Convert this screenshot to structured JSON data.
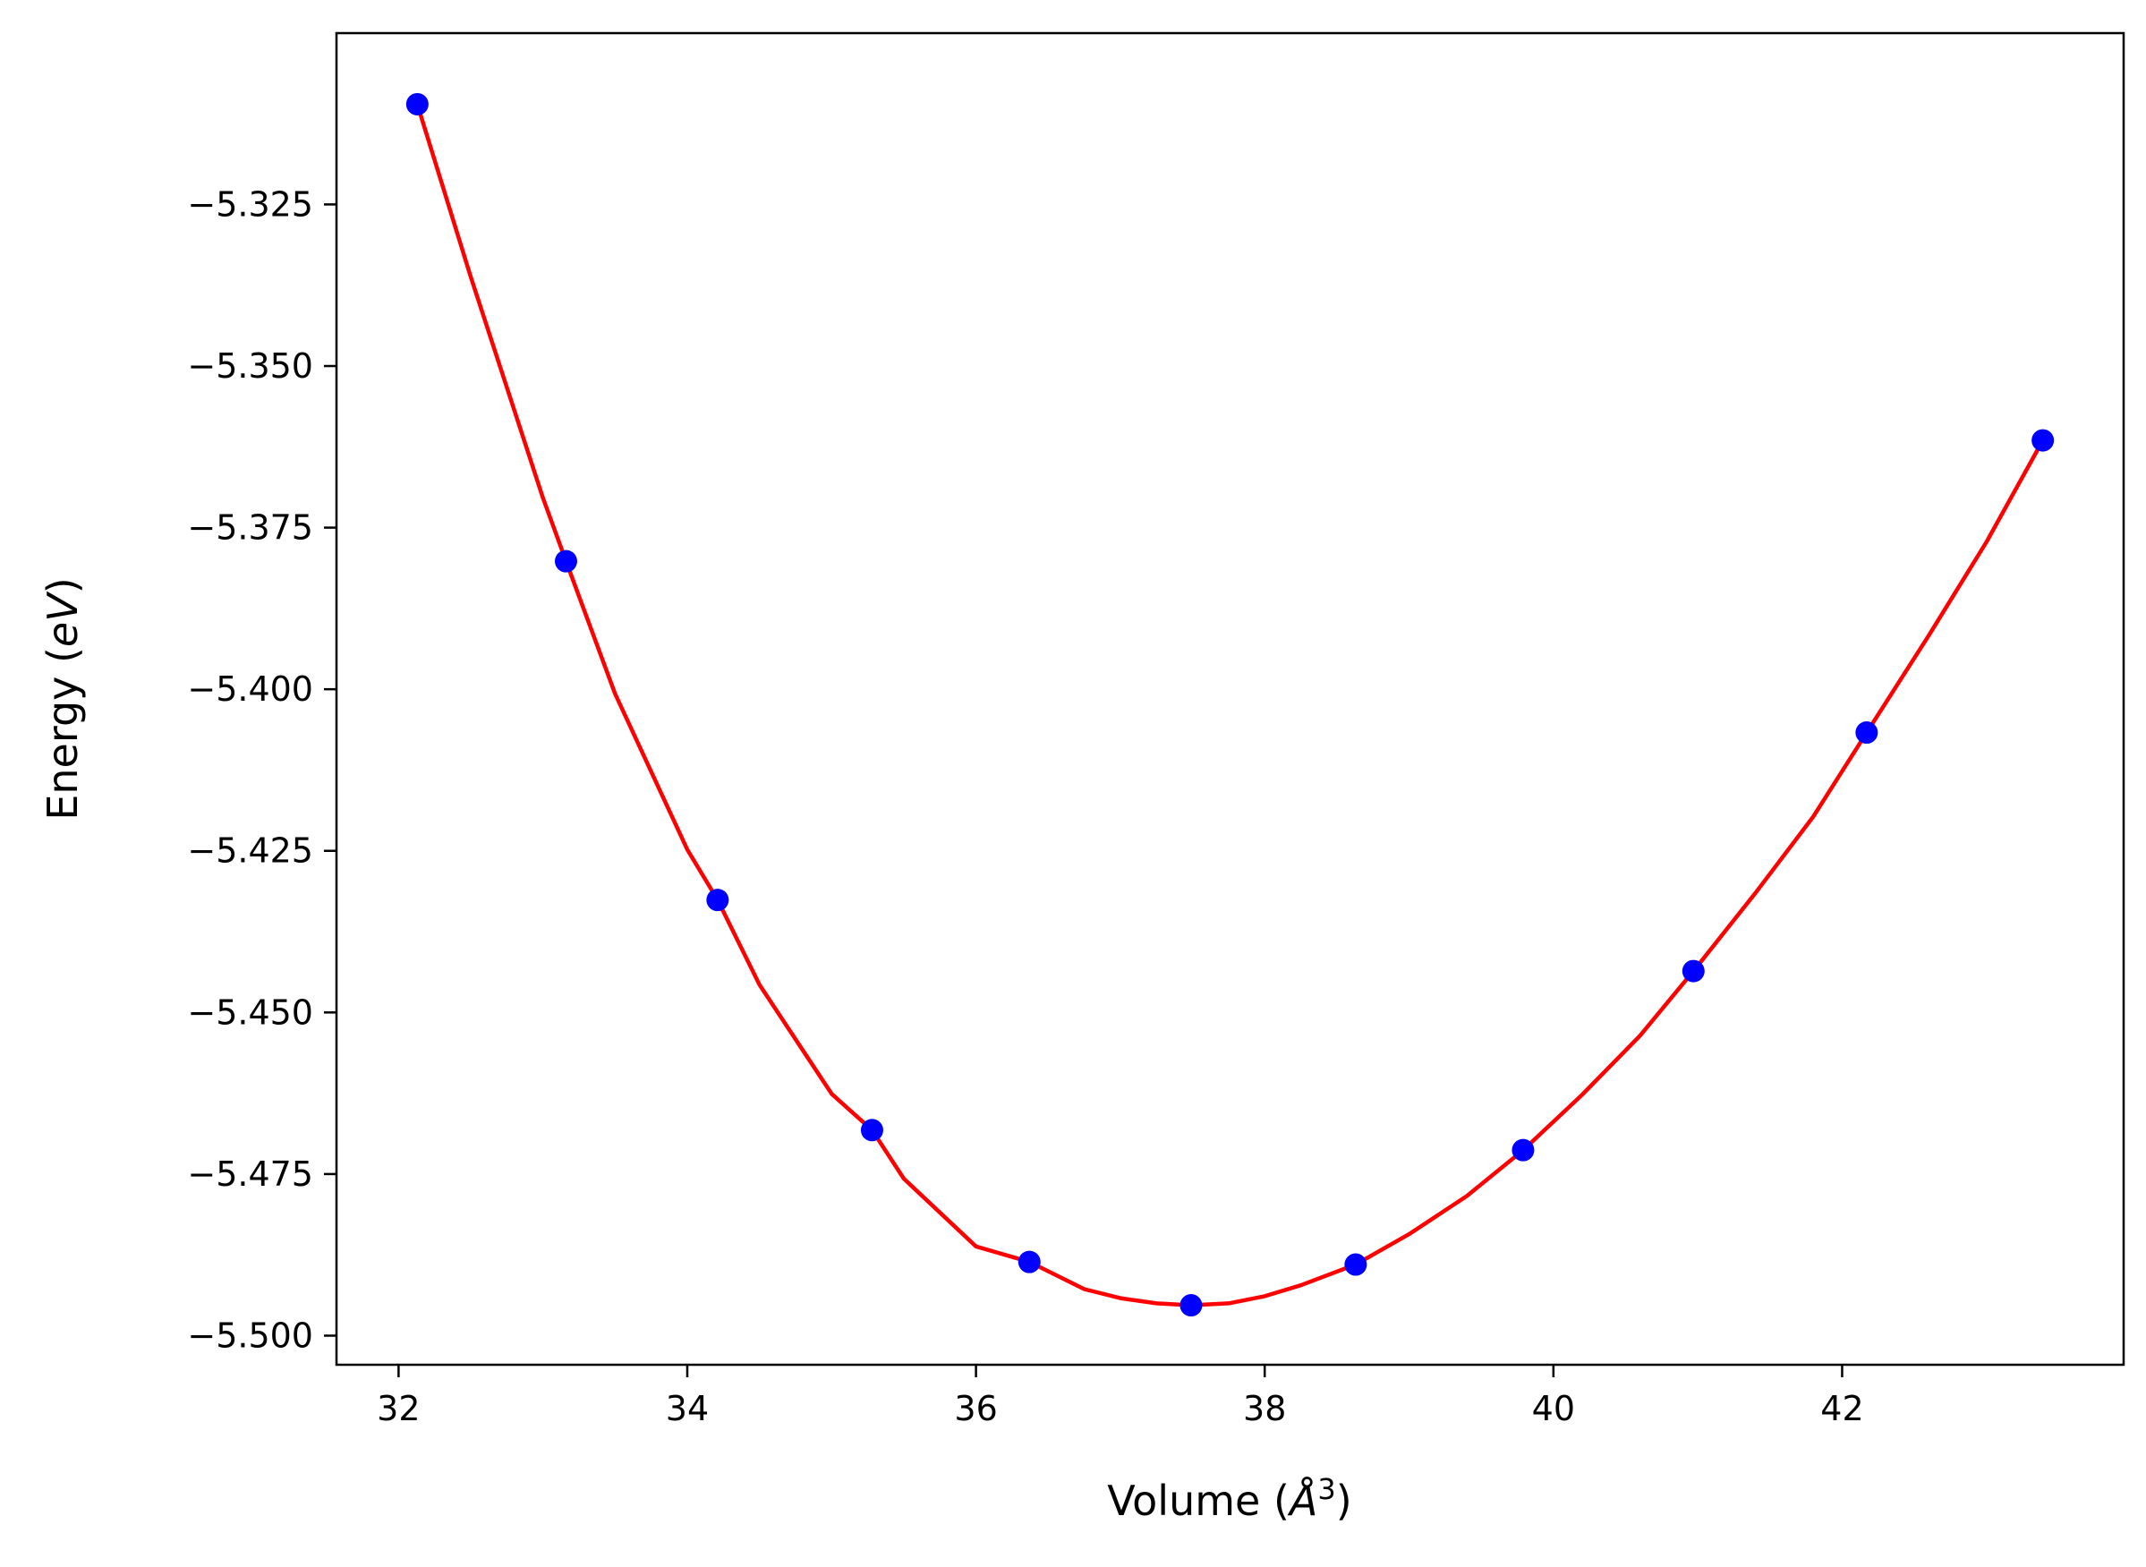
{
  "chart_data": {
    "type": "line",
    "title": "",
    "xlabel": "Volume",
    "xlabel_unit": "Å",
    "xlabel_unit_power": "3",
    "ylabel": "Energy",
    "ylabel_unit": "eV",
    "xlim": [
      31.57,
      43.95
    ],
    "ylim": [
      -5.5045,
      -5.2985
    ],
    "x_ticks": [
      32,
      34,
      36,
      38,
      40,
      42
    ],
    "x_tick_labels": [
      "32",
      "34",
      "36",
      "38",
      "40",
      "42"
    ],
    "y_ticks": [
      -5.325,
      -5.35,
      -5.375,
      -5.4,
      -5.425,
      -5.45,
      -5.475,
      -5.5
    ],
    "y_tick_labels": [
      "−5.325",
      "−5.350",
      "−5.375",
      "−5.400",
      "−5.425",
      "−5.450",
      "−5.475",
      "−5.500"
    ],
    "grid": false,
    "series": [
      {
        "kind": "scatter",
        "color": "#0000ff",
        "x": [
          32.13,
          33.16,
          34.21,
          35.28,
          36.37,
          37.49,
          38.63,
          39.79,
          40.97,
          42.17,
          43.39
        ],
        "y": [
          -5.3095,
          -5.3802,
          -5.4326,
          -5.4682,
          -5.4886,
          -5.4953,
          -5.489,
          -5.4713,
          -5.4436,
          -5.4067,
          -5.3615
        ]
      },
      {
        "kind": "fit-line",
        "color": "#ff0000",
        "x": [
          32.13,
          32.5,
          33.0,
          33.16,
          33.5,
          34.0,
          34.21,
          34.5,
          35.0,
          35.28,
          35.5,
          36.0,
          36.37,
          36.75,
          37.0,
          37.25,
          37.49,
          37.75,
          38.0,
          38.25,
          38.63,
          39.0,
          39.4,
          39.79,
          40.2,
          40.6,
          40.97,
          41.4,
          41.8,
          42.17,
          42.6,
          43.0,
          43.39
        ],
        "y": [
          -5.3095,
          -5.3362,
          -5.3704,
          -5.3802,
          -5.4007,
          -5.4248,
          -5.4326,
          -5.4457,
          -5.4626,
          -5.4682,
          -5.4757,
          -5.4862,
          -5.4886,
          -5.4928,
          -5.4942,
          -5.495,
          -5.4953,
          -5.495,
          -5.4939,
          -5.4922,
          -5.489,
          -5.4843,
          -5.4784,
          -5.4713,
          -5.4627,
          -5.4536,
          -5.4436,
          -5.4315,
          -5.4197,
          -5.4067,
          -5.3917,
          -5.3772,
          -5.3615
        ]
      }
    ]
  }
}
